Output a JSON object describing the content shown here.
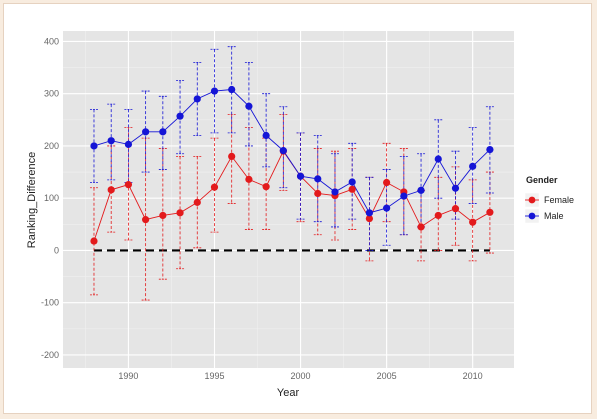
{
  "chart_data": {
    "type": "line",
    "xlabel": "Year",
    "ylabel": "Ranking_Difference",
    "xlim": [
      1986.2,
      2012.4
    ],
    "ylim": [
      -225,
      420
    ],
    "x_ticks": [
      1990,
      1995,
      2000,
      2005,
      2010
    ],
    "y_ticks": [
      -200,
      -100,
      0,
      100,
      200,
      300,
      400
    ],
    "grid": true,
    "reference_line": {
      "y": 0,
      "x_start": 1988,
      "x_end": 2011,
      "style": "dashed",
      "color": "#000000"
    },
    "legend": {
      "title": "Gender",
      "placement": "right",
      "entries": [
        {
          "label": "Female",
          "color": "#e31a1c"
        },
        {
          "label": "Male",
          "color": "#1515d6"
        }
      ]
    },
    "x": [
      1988,
      1989,
      1990,
      1991,
      1992,
      1993,
      1994,
      1995,
      1996,
      1997,
      1998,
      1999,
      2000,
      2001,
      2002,
      2003,
      2004,
      2005,
      2006,
      2007,
      2008,
      2009,
      2010,
      2011
    ],
    "series": [
      {
        "name": "Female",
        "color": "#e31a1c",
        "values": [
          18,
          116,
          126,
          59,
          67,
          72,
          92,
          121,
          180,
          136,
          122,
          190,
          142,
          109,
          105,
          117,
          61,
          130,
          112,
          45,
          67,
          80,
          54,
          73
        ],
        "lower": [
          -85,
          35,
          20,
          -95,
          -55,
          -35,
          5,
          35,
          90,
          40,
          40,
          115,
          55,
          30,
          20,
          40,
          -20,
          55,
          30,
          -20,
          0,
          10,
          -20,
          -5
        ],
        "upper": [
          120,
          200,
          235,
          215,
          195,
          180,
          180,
          215,
          260,
          235,
          215,
          260,
          225,
          195,
          190,
          195,
          140,
          205,
          195,
          115,
          140,
          160,
          135,
          150
        ]
      },
      {
        "name": "Male",
        "color": "#1515d6",
        "values": [
          200,
          210,
          203,
          227,
          227,
          257,
          290,
          305,
          308,
          276,
          220,
          191,
          142,
          137,
          112,
          131,
          72,
          81,
          104,
          115,
          175,
          119,
          161,
          193
        ],
        "lower": [
          130,
          135,
          130,
          150,
          155,
          185,
          220,
          225,
          225,
          200,
          160,
          120,
          60,
          55,
          45,
          60,
          0,
          10,
          30,
          45,
          100,
          60,
          90,
          110
        ],
        "upper": [
          270,
          280,
          270,
          305,
          295,
          325,
          360,
          385,
          390,
          360,
          300,
          275,
          225,
          220,
          185,
          205,
          140,
          155,
          180,
          185,
          250,
          190,
          235,
          275
        ]
      }
    ]
  }
}
